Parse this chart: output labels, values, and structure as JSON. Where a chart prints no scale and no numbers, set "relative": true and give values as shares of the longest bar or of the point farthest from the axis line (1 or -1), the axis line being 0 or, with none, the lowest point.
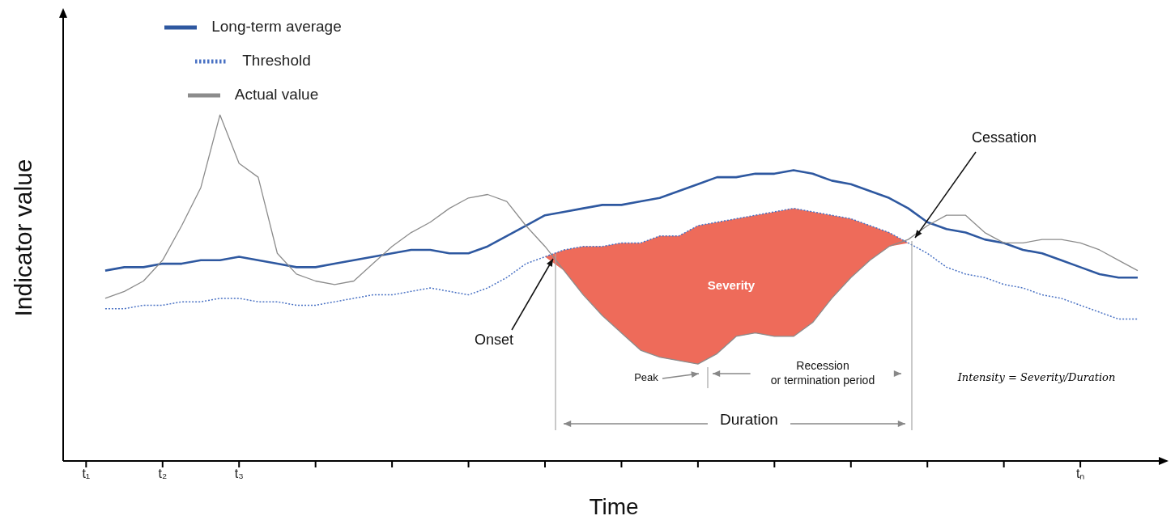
{
  "chart_data": {
    "type": "line",
    "relative": true,
    "xlabel": "Time",
    "ylabel": "Indicator value",
    "legend": "top left",
    "categories": [
      "t₁",
      null,
      null,
      null,
      "t₂",
      null,
      null,
      null,
      "t₃",
      null,
      null,
      null,
      null,
      null,
      null,
      null,
      null,
      null,
      null,
      null,
      null,
      null,
      null,
      null,
      null,
      null,
      null,
      null,
      null,
      null,
      null,
      null,
      null,
      null,
      null,
      null,
      null,
      null,
      null,
      null,
      null,
      null,
      null,
      null,
      null,
      null,
      null,
      null,
      null,
      null,
      null,
      null,
      "tₙ",
      null,
      null,
      null
    ],
    "series": [
      {
        "name": "Long-term average",
        "color": "#2e58a0",
        "values": [
          null,
          0.55,
          0.56,
          0.56,
          0.57,
          0.57,
          0.58,
          0.58,
          0.59,
          0.58,
          0.57,
          0.56,
          0.56,
          0.57,
          0.58,
          0.59,
          0.6,
          0.61,
          0.61,
          0.6,
          0.6,
          0.62,
          0.65,
          0.68,
          0.71,
          0.72,
          0.73,
          0.74,
          0.74,
          0.75,
          0.76,
          0.78,
          0.8,
          0.82,
          0.82,
          0.83,
          0.83,
          0.84,
          0.83,
          0.81,
          0.8,
          0.78,
          0.76,
          0.73,
          0.69,
          0.67,
          0.66,
          0.64,
          0.63,
          0.61,
          0.6,
          0.58,
          0.56,
          0.54,
          0.53,
          0.53
        ]
      },
      {
        "name": "Threshold",
        "color": "#4a72c4",
        "line_style": "dotted",
        "values": [
          null,
          0.44,
          0.44,
          0.45,
          0.45,
          0.46,
          0.46,
          0.47,
          0.47,
          0.46,
          0.46,
          0.45,
          0.45,
          0.46,
          0.47,
          0.48,
          0.48,
          0.49,
          0.5,
          0.49,
          0.48,
          0.5,
          0.53,
          0.57,
          0.59,
          0.61,
          0.62,
          0.62,
          0.63,
          0.63,
          0.65,
          0.65,
          0.68,
          0.69,
          0.7,
          0.71,
          0.72,
          0.73,
          0.72,
          0.71,
          0.7,
          0.68,
          0.66,
          0.63,
          0.6,
          0.56,
          0.54,
          0.53,
          0.51,
          0.5,
          0.48,
          0.47,
          0.45,
          0.43,
          0.41,
          0.41
        ],
        "upper": [
          null,
          null,
          null,
          null,
          null,
          null,
          null,
          null,
          null,
          null,
          null,
          null,
          null,
          null,
          null,
          null,
          null,
          null,
          null,
          null,
          null,
          null,
          null,
          null,
          0.59,
          0.61,
          0.62,
          0.62,
          0.63,
          0.63,
          0.65,
          0.65,
          0.68,
          0.69,
          0.7,
          0.71,
          0.72,
          0.73,
          0.72,
          0.71,
          0.7,
          0.68,
          0.66,
          0.63,
          null,
          null,
          null,
          null,
          null,
          null,
          null,
          null,
          null,
          null,
          null,
          null
        ],
        "lower": [
          null,
          null,
          null,
          null,
          null,
          null,
          null,
          null,
          null,
          null,
          null,
          null,
          null,
          null,
          null,
          null,
          null,
          null,
          null,
          null,
          null,
          null,
          null,
          null,
          0.59,
          0.55,
          0.48,
          0.42,
          0.37,
          0.32,
          0.3,
          0.29,
          0.28,
          0.31,
          0.36,
          0.37,
          0.36,
          0.36,
          0.4,
          0.47,
          0.53,
          0.58,
          0.62,
          0.63,
          null,
          null,
          null,
          null,
          null,
          null,
          null,
          null,
          null,
          null,
          null,
          null
        ]
      },
      {
        "name": "Actual value",
        "color": "#8c8c8c",
        "values": [
          null,
          0.47,
          0.49,
          0.52,
          0.58,
          0.68,
          0.79,
          1.0,
          0.86,
          0.82,
          0.6,
          0.54,
          0.52,
          0.51,
          0.52,
          0.57,
          0.62,
          0.66,
          0.69,
          0.73,
          0.76,
          0.77,
          0.75,
          0.68,
          0.62,
          0.55,
          0.48,
          0.42,
          0.37,
          0.32,
          0.3,
          0.29,
          0.28,
          0.31,
          0.36,
          0.37,
          0.36,
          0.36,
          0.4,
          0.47,
          0.53,
          0.58,
          0.62,
          0.64,
          0.68,
          0.71,
          0.71,
          0.66,
          0.63,
          0.63,
          0.64,
          0.64,
          0.63,
          0.61,
          0.58,
          0.55
        ]
      }
    ],
    "annotations": [
      "Onset",
      "Cessation",
      "Severity",
      "Peak",
      "Recession\nor termination period",
      "Duration",
      "Intensity = Severity/Duration"
    ]
  }
}
